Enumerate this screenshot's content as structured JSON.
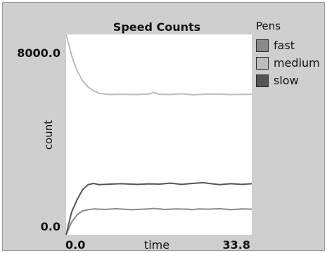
{
  "chart_data": {
    "type": "line",
    "title": "Speed Counts",
    "xlabel": "time",
    "ylabel": "count",
    "xlim": [
      0,
      33.8
    ],
    "ylim": [
      0,
      8000
    ],
    "x_tick_labels": [
      "0.0",
      "33.8"
    ],
    "y_tick_labels": [
      "8000.0",
      "0.0"
    ],
    "legend_title": "Pens",
    "legend_position": "right",
    "series": [
      {
        "name": "fast",
        "color": "#8a8a8a",
        "x": [
          0,
          1,
          2,
          3,
          4,
          5,
          7,
          9,
          12,
          15,
          16,
          18,
          20,
          22,
          23,
          24,
          26,
          28,
          30,
          32,
          33.8
        ],
        "y": [
          0,
          500,
          800,
          950,
          1000,
          1030,
          1010,
          1040,
          1000,
          1030,
          1050,
          1010,
          1030,
          1020,
          1000,
          1030,
          1020,
          1040,
          1000,
          1030,
          1020
        ]
      },
      {
        "name": "medium",
        "color": "#bdbdbd",
        "x": [
          0,
          0.5,
          1,
          2,
          3,
          4,
          5,
          6,
          7,
          8,
          10,
          13,
          15,
          16,
          17,
          19,
          21,
          23,
          25,
          27,
          30,
          33.8
        ],
        "y": [
          8000,
          7600,
          7150,
          6550,
          6150,
          5900,
          5750,
          5650,
          5620,
          5600,
          5610,
          5600,
          5620,
          5680,
          5610,
          5600,
          5630,
          5590,
          5610,
          5620,
          5600,
          5610
        ]
      },
      {
        "name": "slow",
        "color": "#555555",
        "x": [
          0,
          1,
          2,
          3,
          4,
          5,
          6,
          8,
          10,
          13,
          15,
          17,
          19,
          21,
          23,
          25,
          26,
          28,
          30,
          32,
          33.8
        ],
        "y": [
          0,
          900,
          1400,
          1800,
          2000,
          2050,
          2000,
          2020,
          2040,
          2010,
          2030,
          2020,
          2060,
          2010,
          2050,
          2080,
          2050,
          2000,
          2040,
          2010,
          2040
        ]
      }
    ]
  }
}
